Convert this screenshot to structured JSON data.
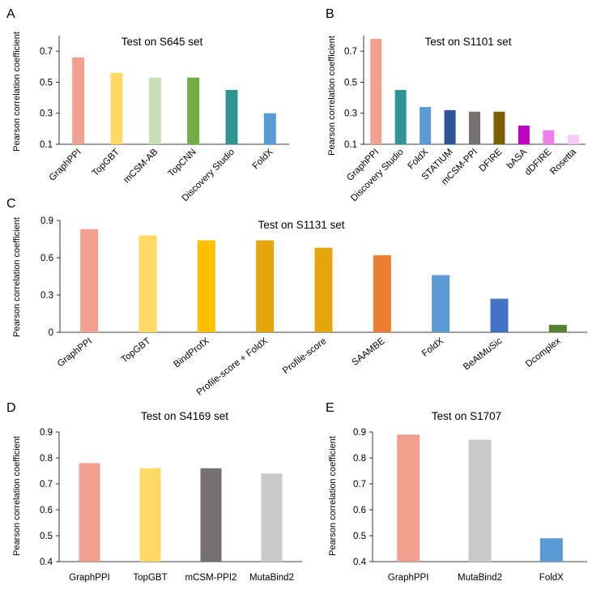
{
  "chart_data": [
    {
      "panel": "A",
      "type": "bar",
      "title": "Test on S645 set",
      "xlabel": "",
      "ylabel": "Pearson correlation coefficient",
      "ylim": [
        0.1,
        0.8
      ],
      "yticks": [
        "0.1",
        "0.3",
        "0.5",
        "0.7"
      ],
      "categories": [
        "GraphPPI",
        "TopGBT",
        "mCSM-AB",
        "TopCNN",
        "Discovery Studio",
        "FoldX"
      ],
      "values": [
        0.66,
        0.56,
        0.53,
        0.53,
        0.45,
        0.3
      ],
      "colors": [
        "#f2a191",
        "#ffd966",
        "#c6e0b4",
        "#70ad47",
        "#2e9494",
        "#5b9bd5"
      ]
    },
    {
      "panel": "B",
      "type": "bar",
      "title": "Test on S1101 set",
      "xlabel": "",
      "ylabel": "Pearson correlation coefficient",
      "ylim": [
        0.1,
        0.8
      ],
      "yticks": [
        "0.1",
        "0.3",
        "0.5",
        "0.7"
      ],
      "categories": [
        "GraphPPI",
        "Discovery Studio",
        "FoldX",
        "STATIUM",
        "mCSM-PPI",
        "DFIRE",
        "bASA",
        "dDFIRE",
        "Rosetta"
      ],
      "values": [
        0.78,
        0.45,
        0.34,
        0.32,
        0.31,
        0.31,
        0.22,
        0.19,
        0.16
      ],
      "colors": [
        "#f2a191",
        "#2e9494",
        "#5b9bd5",
        "#2f5597",
        "#767171",
        "#7f6000",
        "#c000c0",
        "#ef7fef",
        "#f8c8f8"
      ]
    },
    {
      "panel": "C",
      "type": "bar",
      "title": "Test on S1131 set",
      "xlabel": "",
      "ylabel": "Pearson correlation coefficient",
      "ylim": [
        0,
        0.9
      ],
      "yticks": [
        "0",
        "0.3",
        "0.6",
        "0.9"
      ],
      "categories": [
        "GraphPPI",
        "TopGBT",
        "BindProfX",
        "Profile-score + FoldX",
        "Profile-score",
        "SAAMBE",
        "FoldX",
        "BeAtMuSic",
        "Dcomplex"
      ],
      "values": [
        0.83,
        0.78,
        0.74,
        0.74,
        0.68,
        0.62,
        0.46,
        0.27,
        0.06
      ],
      "colors": [
        "#f2a191",
        "#ffd966",
        "#ffc000",
        "#e5a50c",
        "#e5a50c",
        "#ed7d31",
        "#5b9bd5",
        "#4472c4",
        "#548235"
      ]
    },
    {
      "panel": "D",
      "type": "bar",
      "title": "Test on S4169 set",
      "xlabel": "",
      "ylabel": "Pearson correlation coefficient",
      "ylim": [
        0.4,
        0.9
      ],
      "yticks": [
        "0.4",
        "0.5",
        "0.6",
        "0.7",
        "0.8",
        "0.9"
      ],
      "categories": [
        "GraphPPI",
        "TopGBT",
        "mCSM-PPI2",
        "MutaBind2"
      ],
      "values": [
        0.78,
        0.76,
        0.76,
        0.74
      ],
      "colors": [
        "#f2a191",
        "#ffd966",
        "#767171",
        "#c9c9c9"
      ]
    },
    {
      "panel": "E",
      "type": "bar",
      "title": "Test on S1707",
      "xlabel": "",
      "ylabel": "Pearson correlation coefficient",
      "ylim": [
        0.4,
        0.9
      ],
      "yticks": [
        "0.4",
        "0.5",
        "0.6",
        "0.7",
        "0.8",
        "0.9"
      ],
      "categories": [
        "GraphPPI",
        "MutaBind2",
        "FoldX"
      ],
      "values": [
        0.89,
        0.87,
        0.49
      ],
      "colors": [
        "#f2a191",
        "#c9c9c9",
        "#5b9bd5"
      ]
    }
  ]
}
